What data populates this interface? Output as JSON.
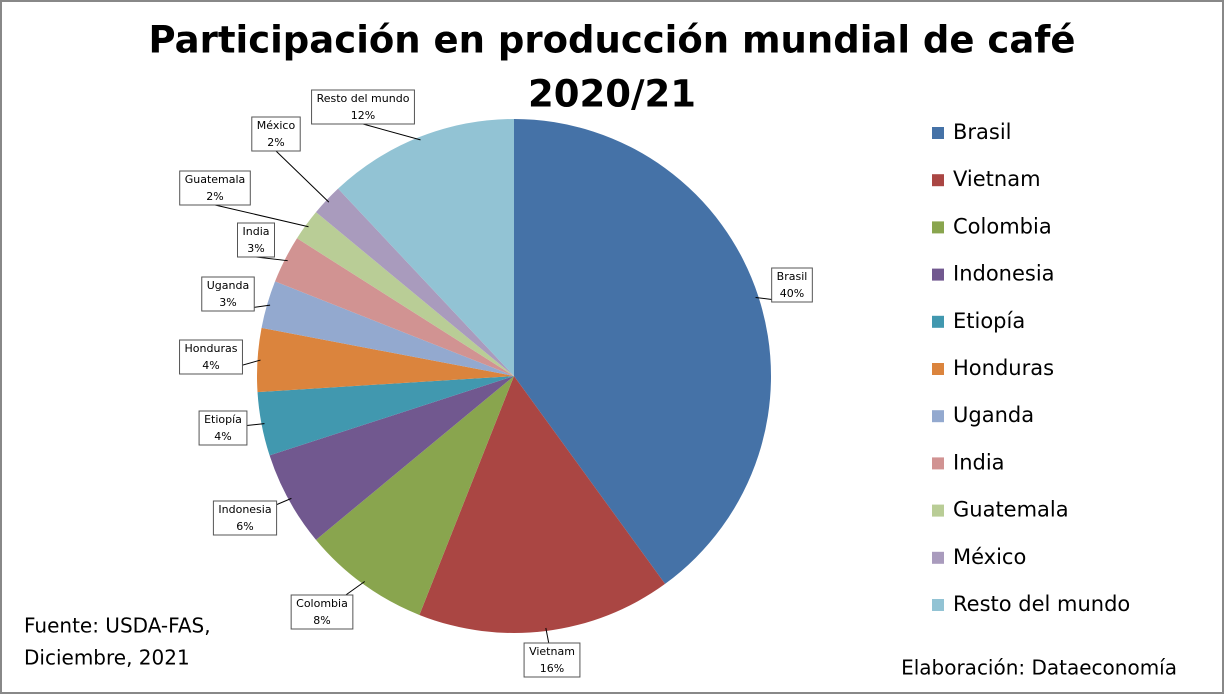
{
  "chart_data": {
    "type": "pie",
    "title_lines": [
      "Participación en producción mundial de café",
      "2020/21"
    ],
    "categories": [
      "Brasil",
      "Vietnam",
      "Colombia",
      "Indonesia",
      "Etiopía",
      "Honduras",
      "Uganda",
      "India",
      "Guatemala",
      "México",
      "Resto del mundo"
    ],
    "values": [
      40,
      16,
      8,
      6,
      4,
      4,
      3,
      3,
      2,
      2,
      12
    ],
    "value_labels": [
      "40%",
      "16%",
      "8%",
      "6%",
      "4%",
      "4%",
      "3%",
      "3%",
      "2%",
      "2%",
      "12%"
    ],
    "colors": [
      "#4572a7",
      "#aa4643",
      "#89a54e",
      "#71588f",
      "#4198af",
      "#db843d",
      "#93a9cf",
      "#d19392",
      "#b9cd96",
      "#a99bbd",
      "#92c3d4"
    ],
    "legend": "right",
    "source_lines": [
      "Fuente: USDA-FAS,",
      "Diciembre, 2021"
    ],
    "credit": "Elaboración: Dataeconomía"
  }
}
